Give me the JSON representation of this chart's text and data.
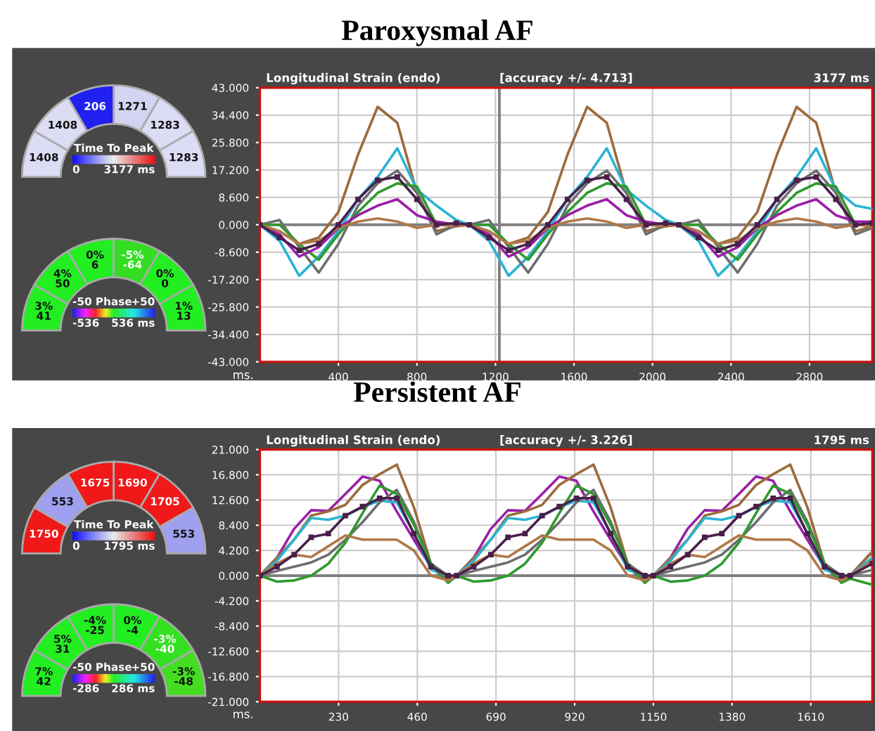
{
  "chart_data": [
    {
      "type": "line",
      "title": "Paroxysmal AF",
      "subtitle": "Longitudinal Strain (endo)",
      "annotations": [
        "[accuracy +/- 4.713]",
        "3177 ms"
      ],
      "xlabel": "ms.",
      "x": [
        0,
        100,
        200,
        300,
        400,
        500,
        600,
        700,
        800,
        900,
        1000,
        1067,
        1167,
        1267,
        1367,
        1467,
        1567,
        1667,
        1767,
        1867,
        1967,
        2067,
        2134,
        2234,
        2334,
        2434,
        2534,
        2634,
        2734,
        2834,
        2934,
        3034,
        3120
      ],
      "series": [
        {
          "color": "#9c6b3c",
          "values": [
            0,
            -2,
            -6,
            -4,
            4,
            22,
            37,
            32,
            10,
            -2,
            -0.5,
            0,
            -2,
            -6,
            -4,
            4,
            22,
            37,
            32,
            10,
            -2,
            -0.5,
            0,
            -2,
            -6,
            -4,
            4,
            22,
            37,
            32,
            10,
            -2,
            -0.5
          ]
        },
        {
          "color": "#2ab4d4",
          "values": [
            0,
            -5,
            -16,
            -10,
            -2,
            8,
            15,
            24,
            11,
            6,
            1.5,
            0,
            -5,
            -16,
            -10,
            -2,
            8,
            15,
            24,
            11,
            6,
            1.5,
            0,
            -5,
            -16,
            -10,
            -2,
            8,
            15,
            24,
            11,
            6,
            5
          ]
        },
        {
          "color": "#6e6e6e",
          "values": [
            0,
            1.5,
            -7,
            -15,
            -6,
            6,
            13,
            17,
            10,
            -3,
            0,
            0,
            1.5,
            -7,
            -15,
            -6,
            6,
            13,
            17,
            10,
            -3,
            0,
            0,
            1.5,
            -7,
            -15,
            -6,
            6,
            13,
            17,
            10,
            -3,
            -1
          ]
        },
        {
          "color": "#2e9a2e",
          "values": [
            0,
            0,
            -6,
            -11,
            -3,
            4,
            10,
            13,
            12,
            0,
            0,
            0,
            0,
            -6,
            -11,
            -3,
            4,
            10,
            13,
            12,
            0,
            0,
            0,
            0,
            -6,
            -11,
            -3,
            4,
            10,
            13,
            12,
            0,
            0
          ]
        },
        {
          "color": "#9a1fa8",
          "values": [
            0,
            -3,
            -10,
            -7,
            -1,
            3,
            6,
            8,
            3,
            1,
            0,
            0,
            -3,
            -10,
            -7,
            -1,
            3,
            6,
            8,
            3,
            1,
            0,
            0,
            -3,
            -10,
            -7,
            -1,
            3,
            6,
            8,
            3,
            1,
            1
          ]
        },
        {
          "color": "#b07848",
          "values": [
            0,
            -2,
            -6,
            -5,
            -1,
            1,
            2,
            1,
            -1,
            0,
            -0.5,
            0,
            -2,
            -6,
            -5,
            -1,
            1,
            2,
            1,
            -1,
            0,
            -0.5,
            0,
            -2,
            -6,
            -5,
            -1,
            1,
            2,
            1,
            -1,
            0,
            -0.5
          ]
        },
        {
          "color": "#4a1f4a",
          "marker": "square",
          "values": [
            0,
            -4,
            -8,
            -6,
            0,
            8,
            14,
            15,
            8,
            0,
            0.5,
            0,
            -4,
            -8,
            -6,
            0,
            8,
            14,
            15,
            8,
            0,
            0.5,
            0,
            -4,
            -8,
            -6,
            0,
            8,
            14,
            15,
            8,
            0,
            0.5
          ]
        }
      ],
      "xlim": [
        0,
        3120
      ],
      "xticks": [
        400,
        800,
        1200,
        1600,
        2000,
        2400,
        2800
      ],
      "ylim": [
        -43,
        43
      ],
      "yticks": [
        {
          "value": -43,
          "label": "-43.000"
        },
        {
          "value": -34.4,
          "label": "-34.400"
        },
        {
          "value": -25.8,
          "label": "-25.800"
        },
        {
          "value": -17.2,
          "label": "-17.200"
        },
        {
          "value": -8.6,
          "label": "-8.600"
        },
        {
          "value": 0,
          "label": "0.000"
        },
        {
          "value": 8.6,
          "label": "8.600"
        },
        {
          "value": 17.2,
          "label": "17.200"
        },
        {
          "value": 25.8,
          "label": "25.800"
        },
        {
          "value": 34.4,
          "label": "34.400"
        },
        {
          "value": 43,
          "label": "43.000"
        }
      ],
      "grid": true,
      "ref_lines": [
        {
          "axis": "y",
          "value": 0,
          "color": "#808080"
        },
        {
          "axis": "x",
          "value": 1220,
          "color": "#808080"
        }
      ]
    },
    {
      "type": "other",
      "colors": [
        "#dcdcf5",
        "#dcdcf5",
        "#2020f0",
        "#d4d4f2",
        "#dcdcf5",
        "#dcdcf5"
      ],
      "clabel": "Time To Peak",
      "annotations": [
        "1408",
        "1408",
        "206",
        "1271",
        "1283",
        "1283",
        "0",
        "3177 ms"
      ]
    },
    {
      "type": "other",
      "colors": [
        "#22ee22",
        "#22ee22",
        "#22ee22",
        "#33dd22",
        "#22ee22",
        "#22ee22"
      ],
      "clabel": "Phase",
      "annotations": [
        "3%\n41",
        "4%\n50",
        "0%\n6",
        "-5%\n-64",
        "0%\n0",
        "1%\n13",
        "-50",
        "+50",
        "-536",
        "536 ms"
      ]
    },
    {
      "type": "line",
      "title": "Persistent AF",
      "subtitle": "Longitudinal Strain (endo)",
      "annotations": [
        "[accuracy +/- 3.226]",
        "1795 ms"
      ],
      "xlabel": "ms.",
      "x": [
        0,
        50,
        100,
        150,
        200,
        250,
        300,
        350,
        400,
        450,
        500,
        550,
        575,
        625,
        675,
        725,
        775,
        825,
        875,
        925,
        975,
        1025,
        1075,
        1125,
        1150,
        1200,
        1250,
        1300,
        1350,
        1400,
        1450,
        1500,
        1550,
        1600,
        1650,
        1700,
        1725,
        1790
      ],
      "series": [
        {
          "color": "#9a1fa8",
          "values": [
            0,
            3,
            7.8,
            10.9,
            10.8,
            13.6,
            16.5,
            15.8,
            10.7,
            6,
            1.4,
            -0.8,
            0,
            3,
            7.8,
            10.9,
            10.8,
            13.6,
            16.5,
            15.8,
            10.7,
            6,
            1.4,
            -0.8,
            0,
            3,
            7.8,
            10.9,
            10.8,
            13.6,
            16.5,
            15.8,
            10.7,
            6,
            1.4,
            -0.8,
            0,
            4
          ]
        },
        {
          "color": "#9c6b3c",
          "values": [
            0,
            3,
            6,
            10,
            10.7,
            11.8,
            15.1,
            16.9,
            18.5,
            11.4,
            2,
            -0.3,
            0,
            3,
            6,
            10,
            10.7,
            11.8,
            15.1,
            16.9,
            18.5,
            11.4,
            2,
            -0.3,
            0,
            3,
            6,
            10,
            10.7,
            11.8,
            15.1,
            16.9,
            18.5,
            11.4,
            2,
            -0.3,
            0,
            4
          ]
        },
        {
          "color": "#2ab4d4",
          "values": [
            0,
            2.5,
            6,
            9.6,
            9.3,
            10,
            11.4,
            12.5,
            12.2,
            7.1,
            1,
            0,
            0,
            2.5,
            6,
            9.6,
            9.3,
            10,
            11.4,
            12.5,
            12.2,
            7.1,
            1,
            0,
            0,
            2.5,
            6,
            9.6,
            9.3,
            10,
            11.4,
            12.5,
            12.2,
            7.1,
            1,
            0,
            0,
            3
          ]
        },
        {
          "color": "#6e6e6e",
          "values": [
            0,
            0.8,
            1.5,
            2.2,
            3.5,
            6,
            8.9,
            12.2,
            14.3,
            9,
            2,
            0,
            0,
            0.8,
            1.5,
            2.2,
            3.5,
            6,
            8.9,
            12.2,
            14.3,
            9,
            2,
            0,
            0,
            0.8,
            1.5,
            2.2,
            3.5,
            6,
            8.9,
            12.2,
            14.3,
            9,
            2,
            0,
            0,
            1
          ]
        },
        {
          "color": "#2e9a2e",
          "values": [
            0,
            -1,
            -0.8,
            0,
            2,
            5.5,
            10.4,
            15,
            13.6,
            8.5,
            2,
            -1.2,
            0,
            -1,
            -0.8,
            0,
            2,
            5.5,
            10.4,
            15,
            13.6,
            8.5,
            2,
            -1.2,
            0,
            -1,
            -0.8,
            0,
            2,
            5.5,
            10.4,
            15,
            13.6,
            8.5,
            2,
            -1.2,
            -0.5,
            -1.5
          ]
        },
        {
          "color": "#b07848",
          "values": [
            0,
            2,
            3.5,
            3.1,
            4.9,
            6.7,
            6,
            6,
            6,
            4.2,
            0,
            -0.8,
            0,
            2,
            3.5,
            3.1,
            4.9,
            6.7,
            6,
            6,
            6,
            4.2,
            0,
            -0.8,
            0,
            2,
            3.5,
            3.1,
            4.9,
            6.7,
            6,
            6,
            6,
            4.2,
            0,
            -0.8,
            0,
            2.5
          ]
        },
        {
          "color": "#4a1f4a",
          "marker": "square",
          "values": [
            0,
            1.5,
            3.5,
            6.4,
            7,
            10,
            11.5,
            12.9,
            12.9,
            7,
            1.5,
            0,
            0,
            1.5,
            3.5,
            6.4,
            7,
            10,
            11.5,
            12.9,
            12.9,
            7,
            1.5,
            0,
            0,
            1.5,
            3.5,
            6.4,
            7,
            10,
            11.5,
            12.9,
            12.9,
            7,
            1.5,
            0,
            0,
            2
          ]
        }
      ],
      "xlim": [
        0,
        1790
      ],
      "xticks": [
        230,
        460,
        690,
        920,
        1150,
        1380,
        1610
      ],
      "ylim": [
        -21,
        21
      ],
      "yticks": [
        {
          "value": -21,
          "label": "-21.000"
        },
        {
          "value": -16.8,
          "label": "-16.800"
        },
        {
          "value": -12.6,
          "label": "-12.600"
        },
        {
          "value": -8.4,
          "label": "-8.400"
        },
        {
          "value": -4.2,
          "label": "-4.200"
        },
        {
          "value": 0,
          "label": "0.000"
        },
        {
          "value": 4.2,
          "label": "4.200"
        },
        {
          "value": 8.4,
          "label": "8.400"
        },
        {
          "value": 12.6,
          "label": "12.600"
        },
        {
          "value": 16.8,
          "label": "16.800"
        },
        {
          "value": 21,
          "label": "21.000"
        }
      ],
      "grid": true,
      "ref_lines": [
        {
          "axis": "y",
          "value": 0,
          "color": "#808080"
        }
      ]
    },
    {
      "type": "other",
      "colors": [
        "#f01818",
        "#a0a0f0",
        "#f01818",
        "#f01818",
        "#f01818",
        "#a0a0f0"
      ],
      "clabel": "Time To Peak",
      "annotations": [
        "1750",
        "553",
        "1675",
        "1690",
        "1705",
        "553",
        "0",
        "1795 ms"
      ]
    },
    {
      "type": "other",
      "colors": [
        "#22ee22",
        "#22ee22",
        "#22ee22",
        "#22ee22",
        "#33e022",
        "#44dd22"
      ],
      "clabel": "Phase",
      "annotations": [
        "7%\n42",
        "5%\n31",
        "-4%\n-25",
        "0%\n-4",
        "-3%\n-40",
        "-3%\n-48",
        "-50",
        "+50",
        "-286",
        "286 ms"
      ]
    }
  ]
}
